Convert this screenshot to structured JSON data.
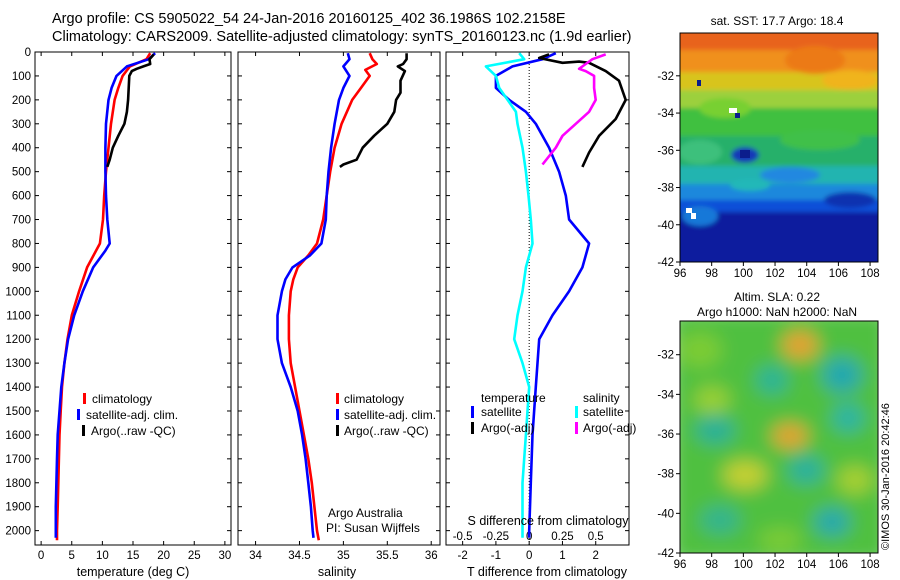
{
  "header": {
    "line1": "Argo profile: CS 5905022_54 24-Jan-2016 20160125_402 36.1986S 102.2158E",
    "line2": "Climatology: CARS2009. Satellite-adjusted climatology: synTS_20160123.nc (1.9d earlier)"
  },
  "colors": {
    "climatology": "#ff0000",
    "satellite": "#0000ff",
    "argo": "#000000",
    "s_satellite": "#00ffff",
    "s_argo": "#ff00ff"
  },
  "depth_ticks": [
    "0",
    "100",
    "200",
    "300",
    "400",
    "500",
    "600",
    "700",
    "800",
    "900",
    "1000",
    "1100",
    "1200",
    "1300",
    "1400",
    "1500",
    "1600",
    "1700",
    "1800",
    "1900",
    "2000"
  ],
  "chart_data": [
    {
      "type": "line",
      "id": "temperature",
      "xlabel": "temperature (deg C)",
      "ylabel": "",
      "xlim": [
        -1,
        31
      ],
      "ylim": [
        2060,
        0
      ],
      "x_ticks": [
        "0",
        "5",
        "10",
        "15",
        "20",
        "25",
        "30"
      ],
      "legend": [
        "climatology",
        "satellite-adj. clim.",
        "Argo(..raw -QC)"
      ],
      "legend_position": "lower-center",
      "series": [
        {
          "name": "climatology",
          "points": [
            [
              17.8,
              5
            ],
            [
              17.2,
              30
            ],
            [
              14.5,
              60
            ],
            [
              13.3,
              100
            ],
            [
              12.6,
              150
            ],
            [
              12.0,
              200
            ],
            [
              11.4,
              300
            ],
            [
              11.0,
              400
            ],
            [
              10.6,
              500
            ],
            [
              10.3,
              600
            ],
            [
              10.1,
              700
            ],
            [
              9.6,
              800
            ],
            [
              7.5,
              900
            ],
            [
              6.2,
              1000
            ],
            [
              5.0,
              1100
            ],
            [
              4.3,
              1200
            ],
            [
              3.8,
              1300
            ],
            [
              3.4,
              1400
            ],
            [
              3.2,
              1500
            ],
            [
              3.0,
              1600
            ],
            [
              2.9,
              1700
            ],
            [
              2.8,
              1800
            ],
            [
              2.7,
              1900
            ],
            [
              2.6,
              2000
            ],
            [
              2.6,
              2040
            ]
          ]
        },
        {
          "name": "satellite-adj. clim.",
          "points": [
            [
              18.6,
              5
            ],
            [
              17.6,
              30
            ],
            [
              14.0,
              60
            ],
            [
              12.3,
              100
            ],
            [
              11.5,
              150
            ],
            [
              11.0,
              200
            ],
            [
              10.6,
              300
            ],
            [
              10.5,
              400
            ],
            [
              10.5,
              500
            ],
            [
              10.6,
              600
            ],
            [
              10.8,
              700
            ],
            [
              11.2,
              800
            ],
            [
              10.5,
              830
            ],
            [
              8.5,
              900
            ],
            [
              6.8,
              1000
            ],
            [
              5.4,
              1100
            ],
            [
              4.4,
              1200
            ],
            [
              3.8,
              1300
            ],
            [
              3.3,
              1400
            ],
            [
              3.0,
              1500
            ],
            [
              2.7,
              1600
            ],
            [
              2.6,
              1700
            ],
            [
              2.5,
              1800
            ],
            [
              2.4,
              1900
            ],
            [
              2.4,
              2000
            ],
            [
              2.4,
              2030
            ]
          ]
        },
        {
          "name": "Argo(..raw -QC)",
          "points": [
            [
              18.4,
              10
            ],
            [
              17.7,
              30
            ],
            [
              17.8,
              50
            ],
            [
              16.7,
              60
            ],
            [
              15.6,
              70
            ],
            [
              14.8,
              80
            ],
            [
              14.4,
              100
            ],
            [
              14.3,
              150
            ],
            [
              14.2,
              200
            ],
            [
              14.0,
              250
            ],
            [
              13.6,
              300
            ],
            [
              12.6,
              350
            ],
            [
              11.7,
              400
            ],
            [
              11.2,
              450
            ],
            [
              10.8,
              480
            ]
          ]
        }
      ]
    },
    {
      "type": "line",
      "id": "salinity",
      "xlabel": "salinity",
      "ylabel": "",
      "xlim": [
        33.8,
        36.1
      ],
      "ylim": [
        2060,
        0
      ],
      "x_ticks": [
        "34",
        "34.5",
        "35",
        "35.5",
        "36"
      ],
      "legend": [
        "climatology",
        "satellite-adj. clim.",
        "Argo(..raw -QC)"
      ],
      "legend_position": "lower-center",
      "annotation": [
        "Argo Australia",
        "PI: Susan Wijffels"
      ],
      "series": [
        {
          "name": "climatology",
          "points": [
            [
              35.3,
              5
            ],
            [
              35.33,
              30
            ],
            [
              35.38,
              50
            ],
            [
              35.25,
              75
            ],
            [
              35.3,
              100
            ],
            [
              35.2,
              150
            ],
            [
              35.1,
              200
            ],
            [
              34.98,
              300
            ],
            [
              34.9,
              400
            ],
            [
              34.85,
              500
            ],
            [
              34.81,
              600
            ],
            [
              34.77,
              700
            ],
            [
              34.7,
              800
            ],
            [
              34.6,
              850
            ],
            [
              34.48,
              900
            ],
            [
              34.43,
              950
            ],
            [
              34.4,
              1000
            ],
            [
              34.38,
              1100
            ],
            [
              34.38,
              1200
            ],
            [
              34.4,
              1300
            ],
            [
              34.45,
              1400
            ],
            [
              34.5,
              1500
            ],
            [
              34.55,
              1600
            ],
            [
              34.6,
              1700
            ],
            [
              34.64,
              1800
            ],
            [
              34.67,
              1900
            ],
            [
              34.7,
              2000
            ],
            [
              34.72,
              2040
            ]
          ]
        },
        {
          "name": "satellite-adj. clim.",
          "points": [
            [
              35.05,
              5
            ],
            [
              35.07,
              30
            ],
            [
              35.0,
              60
            ],
            [
              35.07,
              100
            ],
            [
              35.0,
              150
            ],
            [
              34.95,
              200
            ],
            [
              34.9,
              300
            ],
            [
              34.86,
              400
            ],
            [
              34.83,
              500
            ],
            [
              34.81,
              600
            ],
            [
              34.8,
              700
            ],
            [
              34.75,
              800
            ],
            [
              34.62,
              850
            ],
            [
              34.42,
              900
            ],
            [
              34.34,
              950
            ],
            [
              34.3,
              1000
            ],
            [
              34.25,
              1100
            ],
            [
              34.25,
              1200
            ],
            [
              34.3,
              1300
            ],
            [
              34.4,
              1400
            ],
            [
              34.48,
              1500
            ],
            [
              34.53,
              1600
            ],
            [
              34.57,
              1700
            ],
            [
              34.6,
              1800
            ],
            [
              34.63,
              1900
            ],
            [
              34.65,
              2000
            ],
            [
              34.66,
              2030
            ]
          ]
        },
        {
          "name": "Argo(..raw -QC)",
          "points": [
            [
              35.72,
              5
            ],
            [
              35.72,
              30
            ],
            [
              35.68,
              50
            ],
            [
              35.62,
              60
            ],
            [
              35.7,
              80
            ],
            [
              35.65,
              120
            ],
            [
              35.65,
              170
            ],
            [
              35.6,
              200
            ],
            [
              35.58,
              250
            ],
            [
              35.5,
              300
            ],
            [
              35.35,
              350
            ],
            [
              35.22,
              400
            ],
            [
              35.15,
              450
            ],
            [
              35.0,
              470
            ],
            [
              34.96,
              480
            ]
          ]
        }
      ]
    },
    {
      "type": "line",
      "id": "difference",
      "xlabel": "T difference from climatology",
      "ylabel": "",
      "xlim": [
        -2.5,
        3.0
      ],
      "ylim": [
        2060,
        0
      ],
      "x_ticks": [
        "-2",
        "-1",
        "0",
        "1",
        "2"
      ],
      "top_x_label": "S difference from climatology",
      "top_x_ticks": [
        "-0.5",
        "-0.25",
        "0",
        "0.25",
        "0.5"
      ],
      "legend_headers": [
        "temperature",
        "salinity"
      ],
      "legend": [
        "satellite",
        "Argo(-adj)",
        "satellite",
        "Argo(-adj)"
      ],
      "legend_position": "lower-center",
      "reference_line": 0,
      "series": [
        {
          "name": "temperature satellite",
          "points": [
            [
              0.8,
              5
            ],
            [
              0.4,
              30
            ],
            [
              -0.5,
              60
            ],
            [
              -1.0,
              100
            ],
            [
              -1.0,
              150
            ],
            [
              -0.6,
              200
            ],
            [
              -0.1,
              250
            ],
            [
              0.2,
              300
            ],
            [
              0.6,
              400
            ],
            [
              0.9,
              500
            ],
            [
              1.1,
              600
            ],
            [
              1.2,
              700
            ],
            [
              1.5,
              750
            ],
            [
              1.8,
              800
            ],
            [
              1.6,
              900
            ],
            [
              1.2,
              1000
            ],
            [
              0.7,
              1100
            ],
            [
              0.3,
              1200
            ],
            [
              0.2,
              1400
            ],
            [
              0.1,
              1600
            ],
            [
              0.05,
              1800
            ],
            [
              0.0,
              2000
            ],
            [
              0.0,
              2030
            ]
          ]
        },
        {
          "name": "temperature Argo(-adj)",
          "points": [
            [
              0.6,
              10
            ],
            [
              0.3,
              25
            ],
            [
              1.0,
              45
            ],
            [
              1.5,
              40
            ],
            [
              1.8,
              45
            ],
            [
              2.3,
              80
            ],
            [
              2.7,
              120
            ],
            [
              2.9,
              200
            ],
            [
              2.6,
              280
            ],
            [
              2.1,
              350
            ],
            [
              1.8,
              420
            ],
            [
              1.6,
              480
            ]
          ]
        },
        {
          "name": "salinity satellite",
          "points": [
            [
              -0.3,
              5
            ],
            [
              -0.15,
              30
            ],
            [
              -1.3,
              60
            ],
            [
              -1.0,
              100
            ],
            [
              -0.9,
              150
            ],
            [
              -0.65,
              200
            ],
            [
              -0.4,
              250
            ],
            [
              -0.35,
              300
            ],
            [
              -0.2,
              400
            ],
            [
              -0.1,
              500
            ],
            [
              -0.02,
              600
            ],
            [
              0.05,
              700
            ],
            [
              0.1,
              800
            ],
            [
              -0.1,
              900
            ],
            [
              -0.2,
              1000
            ],
            [
              -0.35,
              1100
            ],
            [
              -0.45,
              1200
            ],
            [
              -0.2,
              1300
            ],
            [
              0.0,
              1400
            ],
            [
              -0.05,
              1500
            ],
            [
              -0.1,
              1600
            ],
            [
              -0.15,
              1700
            ],
            [
              -0.2,
              1800
            ],
            [
              -0.2,
              1900
            ],
            [
              -0.2,
              2000
            ],
            [
              -0.2,
              2030
            ]
          ]
        },
        {
          "name": "salinity Argo(-adj)",
          "points": [
            [
              2.3,
              10
            ],
            [
              1.9,
              30
            ],
            [
              1.7,
              50
            ],
            [
              1.5,
              70
            ],
            [
              1.7,
              80
            ],
            [
              1.95,
              100
            ],
            [
              1.95,
              150
            ],
            [
              2.0,
              200
            ],
            [
              1.8,
              250
            ],
            [
              1.4,
              300
            ],
            [
              1.0,
              350
            ],
            [
              0.8,
              400
            ],
            [
              0.4,
              470
            ]
          ]
        }
      ]
    },
    {
      "type": "heatmap",
      "id": "sst-map",
      "title": "sat. SST: 17.7 Argo: 18.4",
      "xlim": [
        96,
        108.5
      ],
      "ylim": [
        -42,
        -29.7
      ],
      "x_ticks": [
        "96",
        "98",
        "100",
        "102",
        "104",
        "106",
        "108"
      ],
      "y_ticks": [
        "-32",
        "-34",
        "-36",
        "-38",
        "-40",
        "-42"
      ]
    },
    {
      "type": "heatmap",
      "id": "sla-map",
      "title": "Altim. SLA: 0.22",
      "subtitle": "Argo h1000: NaN h2000: NaN",
      "xlim": [
        96,
        108.5
      ],
      "ylim": [
        -42,
        -30.3
      ],
      "x_ticks": [
        "96",
        "98",
        "100",
        "102",
        "104",
        "106",
        "108"
      ],
      "y_ticks": [
        "-32",
        "-34",
        "-36",
        "-38",
        "-40",
        "-42"
      ]
    }
  ],
  "credit": "©IMOS 30-Jan-2016 20:42:46"
}
